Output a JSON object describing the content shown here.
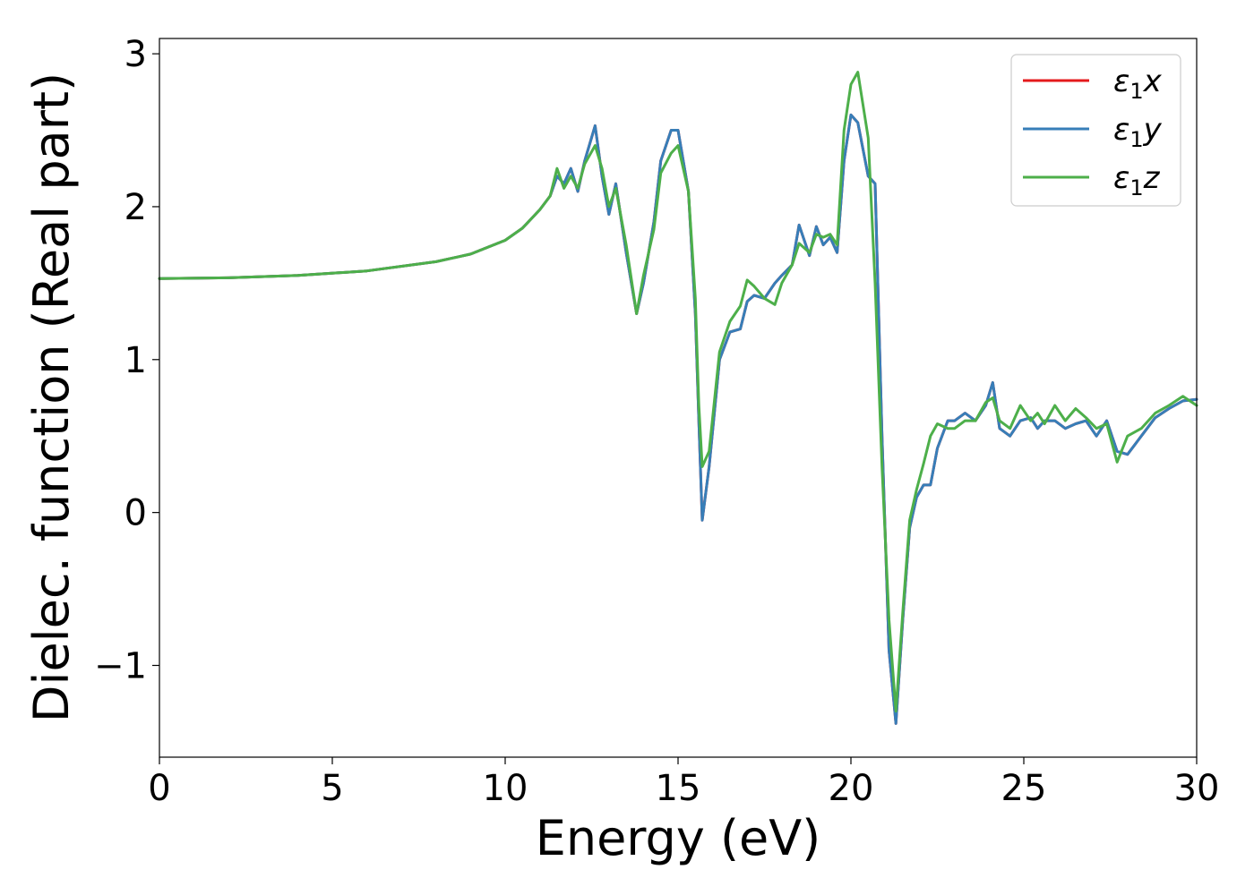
{
  "chart_data": {
    "type": "line",
    "xlabel": "Energy (eV)",
    "ylabel": "Dielec. function (Real part)",
    "xlim": [
      0,
      30
    ],
    "ylim": [
      -1.6,
      3.1
    ],
    "xticks": [
      0,
      5,
      10,
      15,
      20,
      25,
      30
    ],
    "xtick_labels": [
      "0",
      "5",
      "10",
      "15",
      "20",
      "25",
      "30"
    ],
    "yticks": [
      -1,
      0,
      1,
      2,
      3
    ],
    "ytick_labels": [
      "−1",
      "0",
      "1",
      "2",
      "3"
    ],
    "grid": false,
    "legend_position": "top-right",
    "series": [
      {
        "name": "ε1x",
        "legend_main": "ε",
        "legend_sub": "1",
        "legend_suffix": "x",
        "color": "#e41a1c",
        "x": [
          0,
          2,
          4,
          6,
          8,
          9,
          10,
          10.5,
          11,
          11.3,
          11.5,
          11.7,
          11.9,
          12.1,
          12.3,
          12.6,
          12.8,
          13.0,
          13.2,
          13.5,
          13.8,
          14.0,
          14.3,
          14.5,
          14.8,
          15.0,
          15.3,
          15.5,
          15.6,
          15.7,
          15.9,
          16.2,
          16.5,
          16.8,
          17.0,
          17.2,
          17.5,
          17.8,
          18.0,
          18.3,
          18.5,
          18.8,
          19.0,
          19.2,
          19.4,
          19.6,
          19.8,
          20.0,
          20.2,
          20.5,
          20.7,
          20.9,
          21.1,
          21.3,
          21.5,
          21.7,
          21.9,
          22.1,
          22.3,
          22.5,
          22.8,
          23.0,
          23.3,
          23.6,
          23.9,
          24.1,
          24.3,
          24.6,
          24.9,
          25.2,
          25.4,
          25.6,
          25.9,
          26.2,
          26.5,
          26.8,
          27.1,
          27.4,
          27.7,
          28.0,
          28.4,
          28.8,
          29.2,
          29.6,
          30.0
        ],
        "y": [
          1.53,
          1.535,
          1.55,
          1.58,
          1.64,
          1.69,
          1.78,
          1.86,
          1.98,
          2.07,
          2.2,
          2.15,
          2.25,
          2.1,
          2.3,
          2.53,
          2.2,
          1.95,
          2.15,
          1.7,
          1.3,
          1.5,
          1.9,
          2.3,
          2.5,
          2.5,
          2.1,
          1.3,
          0.6,
          -0.05,
          0.3,
          1.0,
          1.18,
          1.2,
          1.38,
          1.42,
          1.4,
          1.5,
          1.55,
          1.62,
          1.88,
          1.68,
          1.87,
          1.75,
          1.8,
          1.7,
          2.3,
          2.6,
          2.55,
          2.2,
          2.15,
          0.5,
          -0.9,
          -1.38,
          -0.7,
          -0.1,
          0.1,
          0.18,
          0.18,
          0.42,
          0.6,
          0.6,
          0.65,
          0.6,
          0.7,
          0.85,
          0.55,
          0.5,
          0.6,
          0.62,
          0.55,
          0.6,
          0.6,
          0.55,
          0.58,
          0.6,
          0.5,
          0.6,
          0.4,
          0.38,
          0.5,
          0.62,
          0.68,
          0.73,
          0.74
        ]
      },
      {
        "name": "ε1y",
        "legend_main": "ε",
        "legend_sub": "1",
        "legend_suffix": "y",
        "color": "#377eb8",
        "x": [
          0,
          2,
          4,
          6,
          8,
          9,
          10,
          10.5,
          11,
          11.3,
          11.5,
          11.7,
          11.9,
          12.1,
          12.3,
          12.6,
          12.8,
          13.0,
          13.2,
          13.5,
          13.8,
          14.0,
          14.3,
          14.5,
          14.8,
          15.0,
          15.3,
          15.5,
          15.6,
          15.7,
          15.9,
          16.2,
          16.5,
          16.8,
          17.0,
          17.2,
          17.5,
          17.8,
          18.0,
          18.3,
          18.5,
          18.8,
          19.0,
          19.2,
          19.4,
          19.6,
          19.8,
          20.0,
          20.2,
          20.5,
          20.7,
          20.9,
          21.1,
          21.3,
          21.5,
          21.7,
          21.9,
          22.1,
          22.3,
          22.5,
          22.8,
          23.0,
          23.3,
          23.6,
          23.9,
          24.1,
          24.3,
          24.6,
          24.9,
          25.2,
          25.4,
          25.6,
          25.9,
          26.2,
          26.5,
          26.8,
          27.1,
          27.4,
          27.7,
          28.0,
          28.4,
          28.8,
          29.2,
          29.6,
          30.0
        ],
        "y": [
          1.53,
          1.535,
          1.55,
          1.58,
          1.64,
          1.69,
          1.78,
          1.86,
          1.98,
          2.07,
          2.2,
          2.15,
          2.25,
          2.1,
          2.3,
          2.53,
          2.2,
          1.95,
          2.15,
          1.7,
          1.3,
          1.5,
          1.9,
          2.3,
          2.5,
          2.5,
          2.1,
          1.3,
          0.6,
          -0.05,
          0.3,
          1.0,
          1.18,
          1.2,
          1.38,
          1.42,
          1.4,
          1.5,
          1.55,
          1.62,
          1.88,
          1.68,
          1.87,
          1.75,
          1.8,
          1.7,
          2.3,
          2.6,
          2.55,
          2.2,
          2.15,
          0.5,
          -0.9,
          -1.38,
          -0.7,
          -0.1,
          0.1,
          0.18,
          0.18,
          0.42,
          0.6,
          0.6,
          0.65,
          0.6,
          0.7,
          0.85,
          0.55,
          0.5,
          0.6,
          0.62,
          0.55,
          0.6,
          0.6,
          0.55,
          0.58,
          0.6,
          0.5,
          0.6,
          0.4,
          0.38,
          0.5,
          0.62,
          0.68,
          0.73,
          0.74
        ]
      },
      {
        "name": "ε1z",
        "legend_main": "ε",
        "legend_sub": "1",
        "legend_suffix": "z",
        "color": "#4daf4a",
        "x": [
          0,
          2,
          4,
          6,
          8,
          9,
          10,
          10.5,
          11,
          11.3,
          11.5,
          11.7,
          11.9,
          12.1,
          12.3,
          12.6,
          12.8,
          13.0,
          13.2,
          13.5,
          13.8,
          14.0,
          14.3,
          14.5,
          14.8,
          15.0,
          15.3,
          15.5,
          15.6,
          15.7,
          15.9,
          16.2,
          16.5,
          16.8,
          17.0,
          17.2,
          17.5,
          17.8,
          18.0,
          18.3,
          18.5,
          18.8,
          19.0,
          19.2,
          19.4,
          19.6,
          19.8,
          20.0,
          20.2,
          20.5,
          20.7,
          20.9,
          21.1,
          21.3,
          21.5,
          21.7,
          21.9,
          22.1,
          22.3,
          22.5,
          22.8,
          23.0,
          23.3,
          23.6,
          23.9,
          24.1,
          24.3,
          24.6,
          24.9,
          25.2,
          25.4,
          25.6,
          25.9,
          26.2,
          26.5,
          26.8,
          27.1,
          27.4,
          27.7,
          28.0,
          28.4,
          28.8,
          29.2,
          29.6,
          30.0
        ],
        "y": [
          1.53,
          1.535,
          1.55,
          1.58,
          1.64,
          1.69,
          1.78,
          1.86,
          1.98,
          2.07,
          2.25,
          2.12,
          2.2,
          2.12,
          2.28,
          2.4,
          2.25,
          2.0,
          2.12,
          1.75,
          1.3,
          1.55,
          1.85,
          2.22,
          2.35,
          2.4,
          2.1,
          1.4,
          0.7,
          0.3,
          0.4,
          1.05,
          1.25,
          1.35,
          1.52,
          1.48,
          1.4,
          1.36,
          1.5,
          1.62,
          1.76,
          1.7,
          1.82,
          1.8,
          1.82,
          1.75,
          2.5,
          2.8,
          2.88,
          2.45,
          1.5,
          0.3,
          -0.7,
          -1.3,
          -0.65,
          -0.05,
          0.15,
          0.32,
          0.5,
          0.58,
          0.55,
          0.55,
          0.6,
          0.6,
          0.72,
          0.75,
          0.6,
          0.55,
          0.7,
          0.6,
          0.65,
          0.58,
          0.7,
          0.6,
          0.68,
          0.62,
          0.55,
          0.58,
          0.33,
          0.5,
          0.55,
          0.65,
          0.7,
          0.76,
          0.7
        ]
      }
    ]
  }
}
